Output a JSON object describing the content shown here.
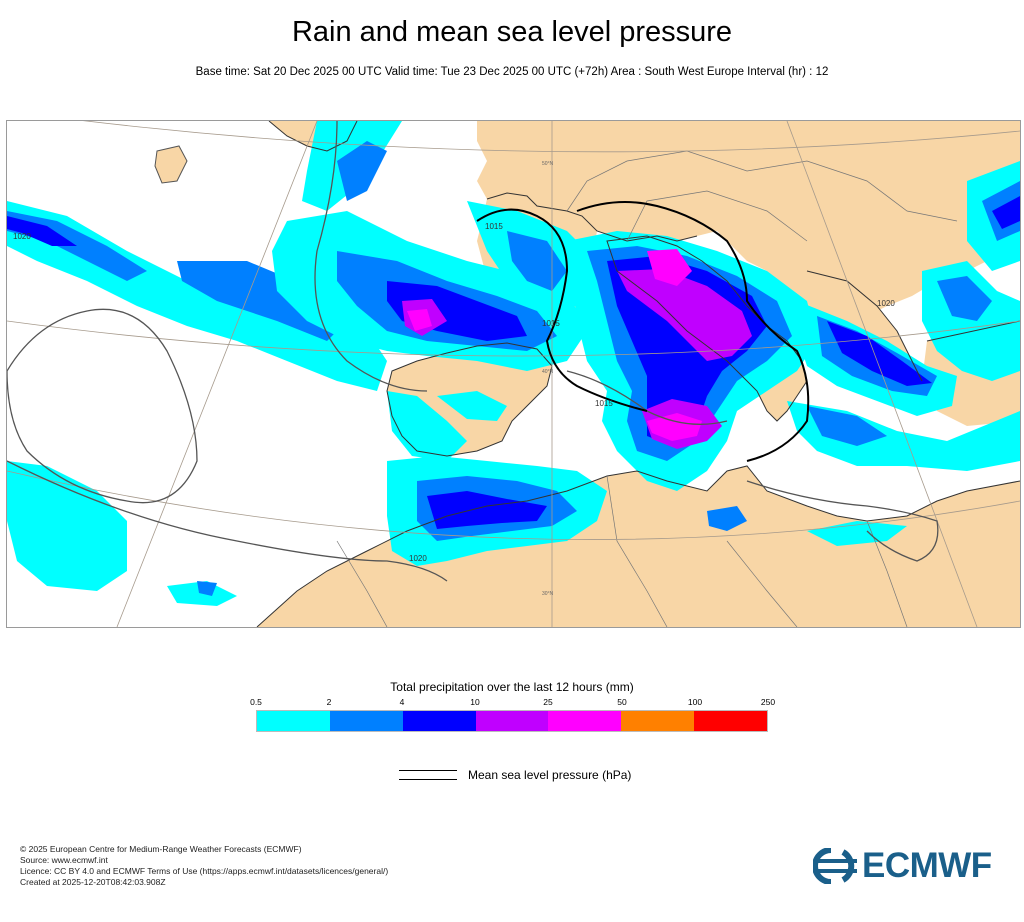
{
  "header": {
    "title": "Rain and mean sea level pressure",
    "subtitle": "Base time: Sat 20 Dec 2025 00 UTC Valid time: Tue 23 Dec 2025 00 UTC (+72h) Area : South West Europe Interval (hr) : 12"
  },
  "map": {
    "isobar_labels": [
      "1020",
      "1015",
      "1015",
      "1015",
      "1020",
      "1020"
    ],
    "lat_labels": [
      "50°N",
      "40°N",
      "30°N"
    ],
    "colors": {
      "land": "#f8d6a6",
      "sea": "#ffffff",
      "isobar": "#555555",
      "isobar_bold": "#000000"
    }
  },
  "legend": {
    "title": "Total precipitation over the last 12 hours (mm)",
    "ticks": [
      "0.5",
      "2",
      "4",
      "10",
      "25",
      "50",
      "100",
      "250"
    ],
    "colors": [
      "#00ffff",
      "#0080ff",
      "#0000ff",
      "#c000ff",
      "#ff00ff",
      "#ff8000",
      "#ff0000"
    ],
    "mslp_label": "Mean sea level pressure (hPa)"
  },
  "footer": {
    "lines": [
      "© 2025 European Centre for Medium-Range Weather Forecasts (ECMWF)",
      "Source: www.ecmwf.int",
      "Licence: CC BY 4.0 and ECMWF Terms of Use (https://apps.ecmwf.int/datasets/licences/general/)",
      "Created at 2025-12-20T08:42:03.908Z"
    ],
    "logo_text": "ECMWF"
  }
}
